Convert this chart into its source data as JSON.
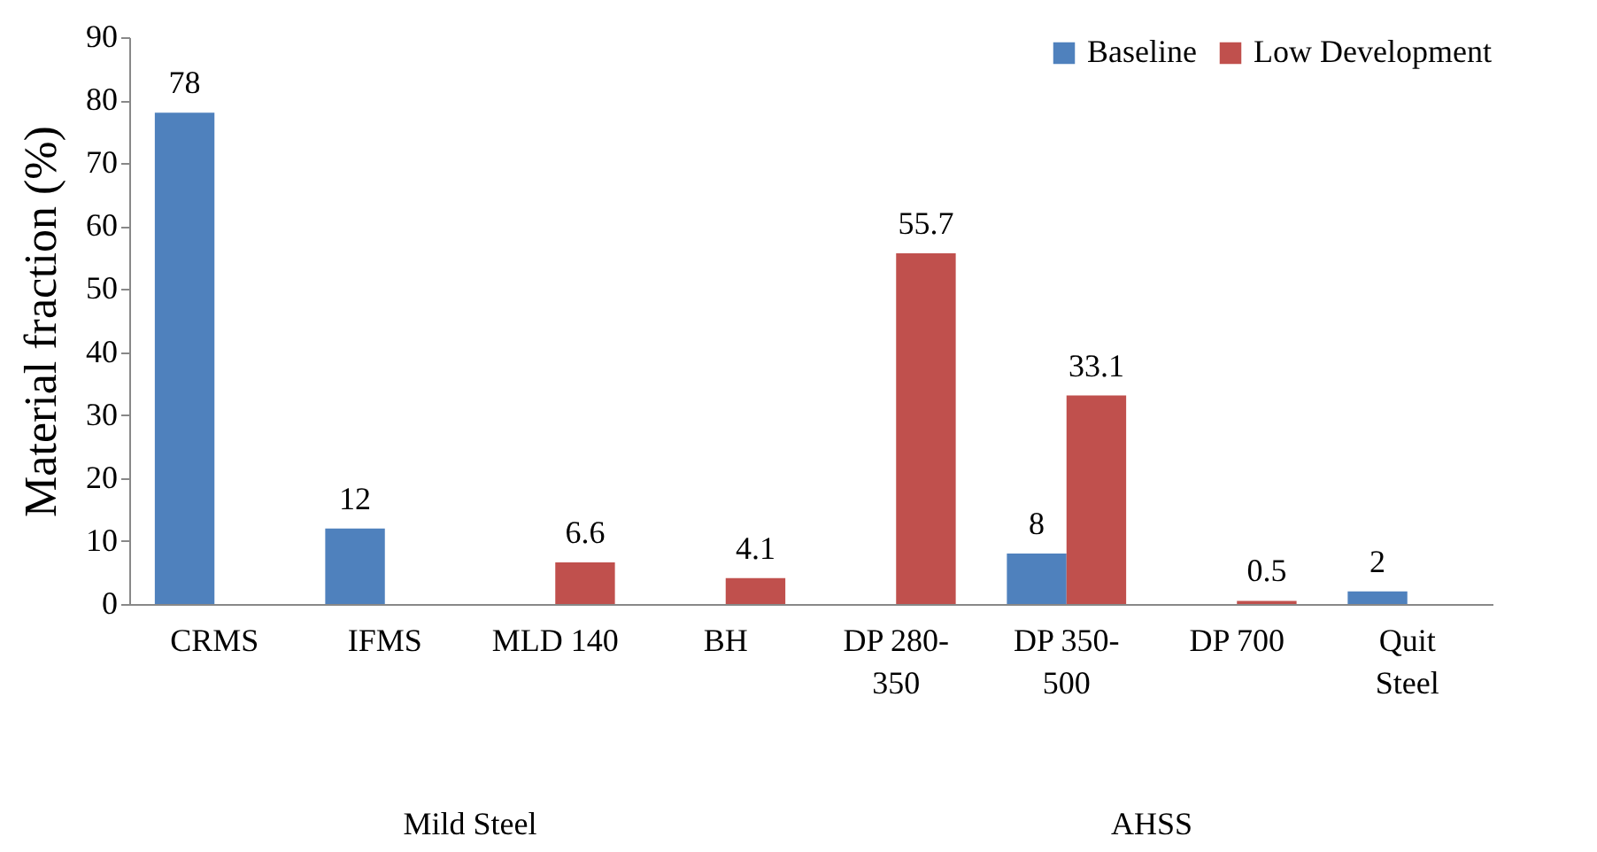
{
  "chart_data": {
    "type": "bar",
    "ylabel": "Material fraction (%)",
    "categories": [
      "CRMS",
      "IFMS",
      "MLD 140",
      "BH",
      "DP 280-350",
      "DP 350-500",
      "DP 700",
      "Quit Steel"
    ],
    "series": [
      {
        "name": "Baseline",
        "color": "#4f81bd",
        "values": [
          78,
          12,
          null,
          null,
          null,
          8,
          null,
          2
        ]
      },
      {
        "name": "Low Development",
        "color": "#c0504d",
        "values": [
          null,
          null,
          6.6,
          4.1,
          55.7,
          33.1,
          0.5,
          null
        ]
      }
    ],
    "ylim": [
      0,
      90
    ],
    "yticks": [
      0,
      10,
      20,
      30,
      40,
      50,
      60,
      70,
      80,
      90
    ],
    "grid": false,
    "legend": "top right",
    "data_labels": true,
    "annotations": [
      "Mild Steel",
      "AHSS"
    ]
  }
}
